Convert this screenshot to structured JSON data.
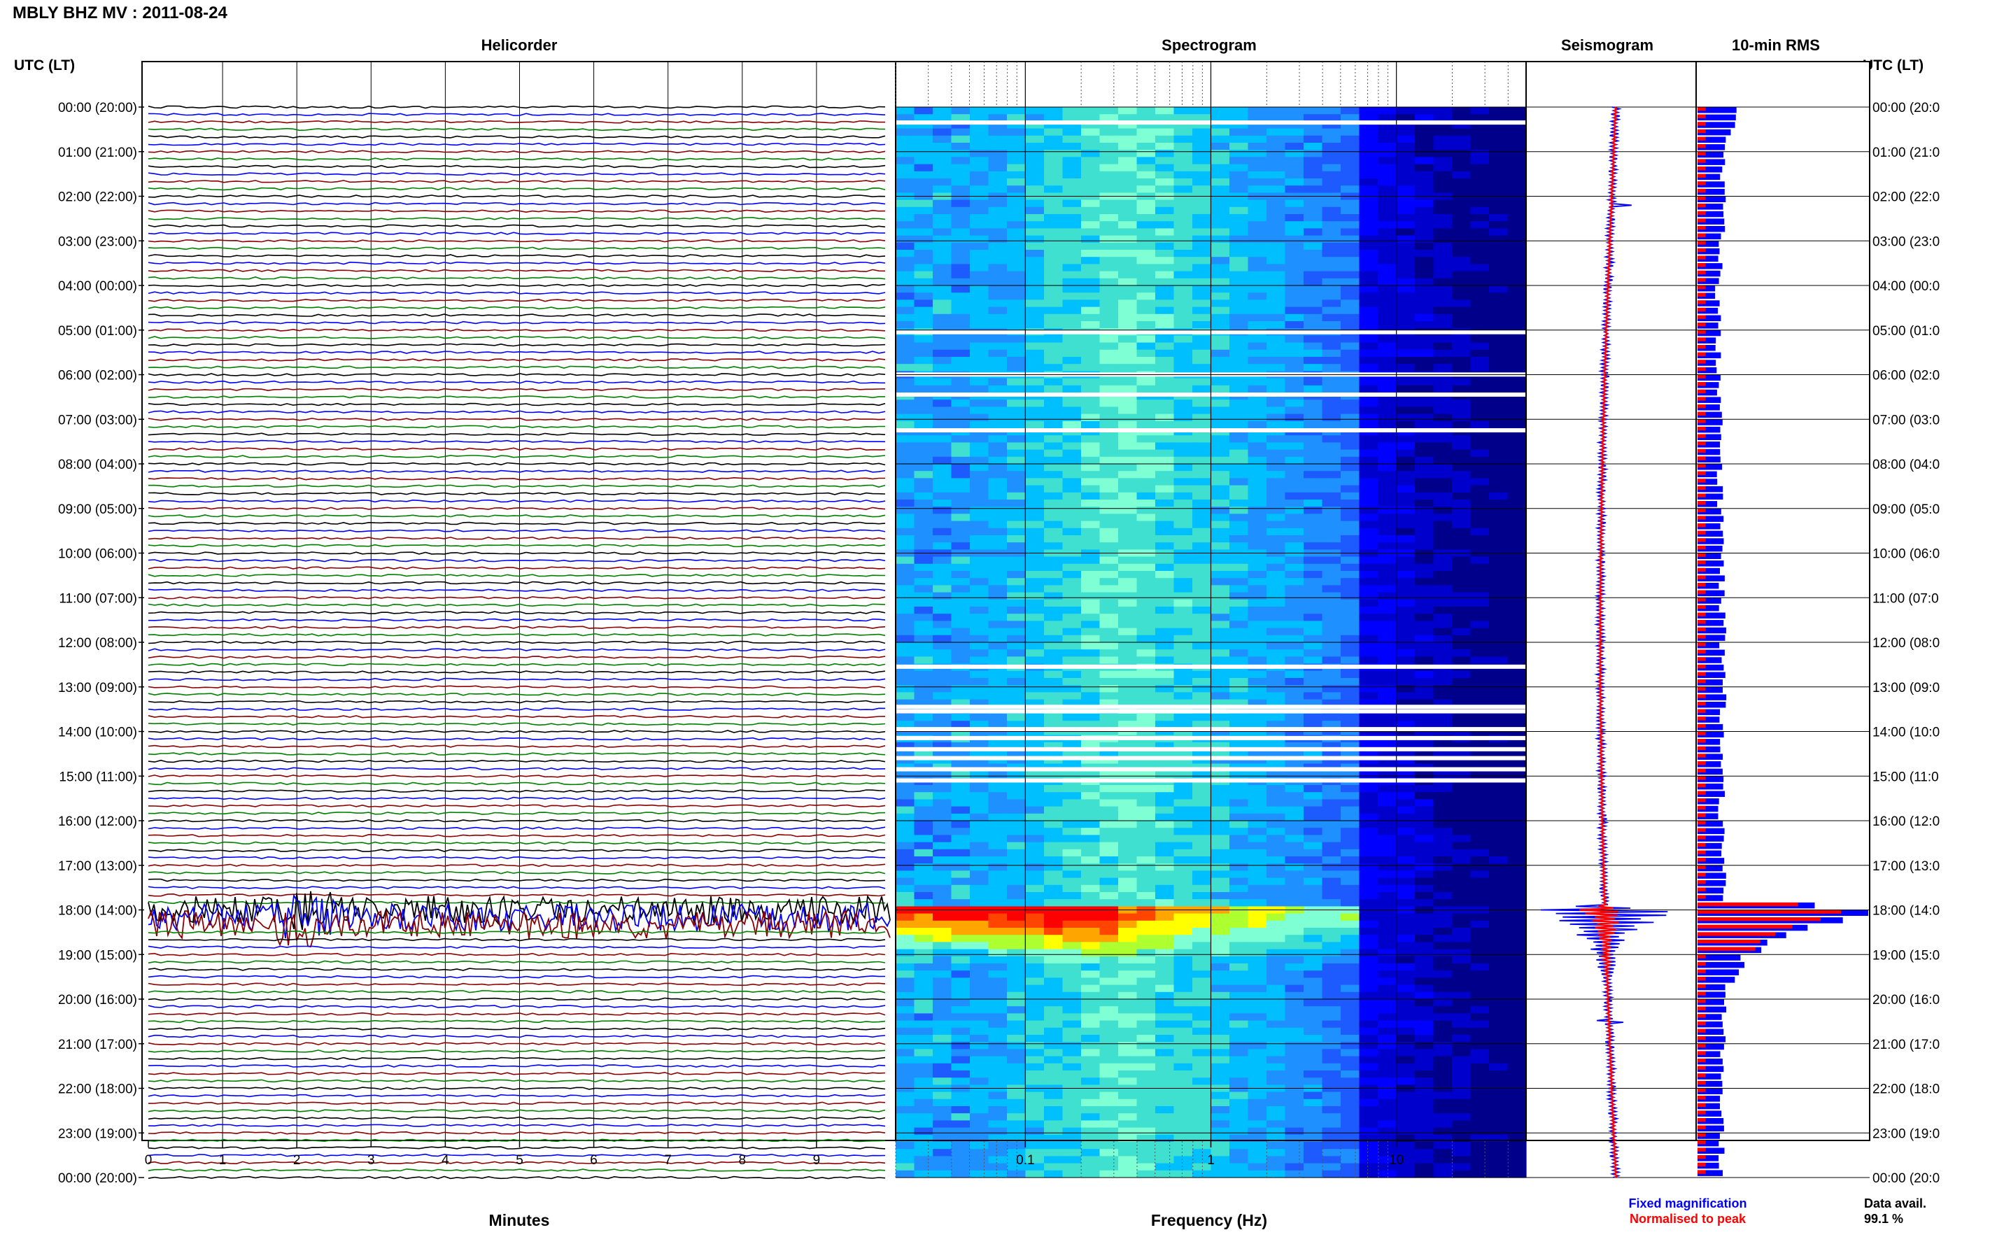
{
  "header": {
    "station_title": "MBLY BHZ MV : 2011-08-24",
    "utc_label_left": "UTC (LT)",
    "utc_label_right": "UTC (LT)"
  },
  "panels": {
    "helicorder": "Helicorder",
    "spectrogram": "Spectrogram",
    "seismogram": "Seismogram",
    "rms": "10-min RMS"
  },
  "axes": {
    "helicorder_xlabel": "Minutes",
    "spectrogram_xlabel": "Frequency (Hz)",
    "minute_ticks": [
      "0",
      "1",
      "2",
      "3",
      "4",
      "5",
      "6",
      "7",
      "8",
      "9"
    ],
    "freq_ticks": [
      {
        "v": 0.1,
        "label": "0.1"
      },
      {
        "v": 1,
        "label": "1"
      },
      {
        "v": 10,
        "label": "10"
      }
    ],
    "freq_range": [
      0.02,
      50
    ],
    "time_labels_left": [
      "00:00 (20:00)",
      "01:00 (21:00)",
      "02:00 (22:00)",
      "03:00 (23:00)",
      "04:00 (00:00)",
      "05:00 (01:00)",
      "06:00 (02:00)",
      "07:00 (03:00)",
      "08:00 (04:00)",
      "09:00 (05:00)",
      "10:00 (06:00)",
      "11:00 (07:00)",
      "12:00 (08:00)",
      "13:00 (09:00)",
      "14:00 (10:00)",
      "15:00 (11:00)",
      "16:00 (12:00)",
      "17:00 (13:00)",
      "18:00 (14:00)",
      "19:00 (15:00)",
      "20:00 (16:00)",
      "21:00 (17:00)",
      "22:00 (18:00)",
      "23:00 (19:00)",
      "00:00 (20:00)"
    ],
    "time_labels_right": [
      "00:00 (20:0",
      "01:00 (21:0",
      "02:00 (22:0",
      "03:00 (23:0",
      "04:00 (00:0",
      "05:00 (01:0",
      "06:00 (02:0",
      "07:00 (03:0",
      "08:00 (04:0",
      "09:00 (05:0",
      "10:00 (06:0",
      "11:00 (07:0",
      "12:00 (08:0",
      "13:00 (09:0",
      "14:00 (10:0",
      "15:00 (11:0",
      "16:00 (12:0",
      "17:00 (13:0",
      "18:00 (14:0",
      "19:00 (15:0",
      "20:00 (16:0",
      "21:00 (17:0",
      "22:00 (18:0",
      "23:00 (19:0",
      "00:00 (20:0"
    ]
  },
  "legend": {
    "fixed": "Fixed magnification",
    "normalised": "Normalised to peak",
    "fixed_color": "#0000ff",
    "normalised_color": "#ff0000"
  },
  "data_availability": {
    "label": "Data avail.",
    "value": "99.1 %"
  },
  "colors": {
    "trace_cycle": [
      "#000000",
      "#0000ff",
      "#8b0000",
      "#008000"
    ],
    "spectrogram_low": "#00008b",
    "spectrogram_high": "#ff0000"
  },
  "chart_data": {
    "type": "heatmap",
    "time_range_hours": [
      0,
      24
    ],
    "helicorder_lines_per_hour": 6,
    "event_hour": 18.0,
    "rms_profile": [
      {
        "hour": 0.5,
        "value": 0.2
      },
      {
        "hour": 1.0,
        "value": 0.14
      },
      {
        "hour": 2.0,
        "value": 0.16
      },
      {
        "hour": 4.0,
        "value": 0.12
      },
      {
        "hour": 8.0,
        "value": 0.13
      },
      {
        "hour": 12.0,
        "value": 0.15
      },
      {
        "hour": 16.0,
        "value": 0.14
      },
      {
        "hour": 17.8,
        "value": 0.15
      },
      {
        "hour": 18.0,
        "value": 1.0
      },
      {
        "hour": 18.3,
        "value": 0.75
      },
      {
        "hour": 18.7,
        "value": 0.4
      },
      {
        "hour": 19.2,
        "value": 0.25
      },
      {
        "hour": 20.0,
        "value": 0.16
      },
      {
        "hour": 24.0,
        "value": 0.14
      }
    ]
  }
}
